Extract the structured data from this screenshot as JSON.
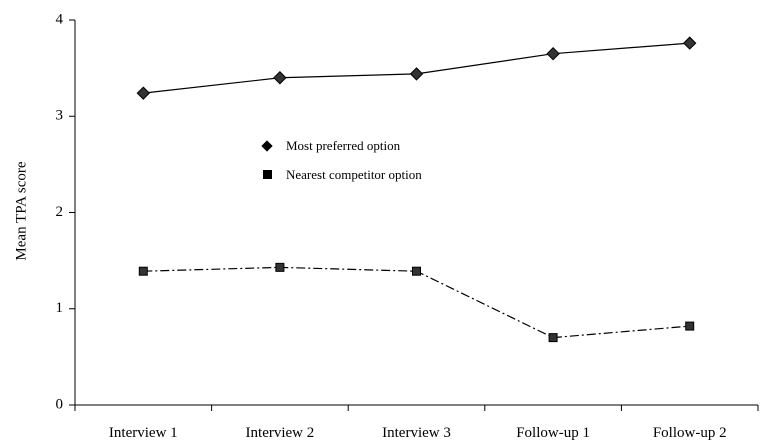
{
  "chart_data": {
    "type": "line",
    "categories": [
      "Interview 1",
      "Interview 2",
      "Interview 3",
      "Follow-up 1",
      "Follow-up 2"
    ],
    "ylabel": "Mean TPA score",
    "xlabel": "",
    "title": "",
    "ylim": [
      0,
      4
    ],
    "yticks": [
      "0",
      "1",
      "2",
      "3",
      "4"
    ],
    "grid": false,
    "legend_position": "center",
    "series": [
      {
        "name": "Most preferred option",
        "marker": "diamond",
        "line_style": "solid",
        "color": "#000000",
        "values": [
          3.24,
          3.4,
          3.44,
          3.65,
          3.76
        ]
      },
      {
        "name": "Nearest competitor option",
        "marker": "square",
        "line_style": "dash-dot",
        "color": "#000000",
        "values": [
          1.39,
          1.43,
          1.39,
          0.7,
          0.82
        ]
      }
    ]
  }
}
